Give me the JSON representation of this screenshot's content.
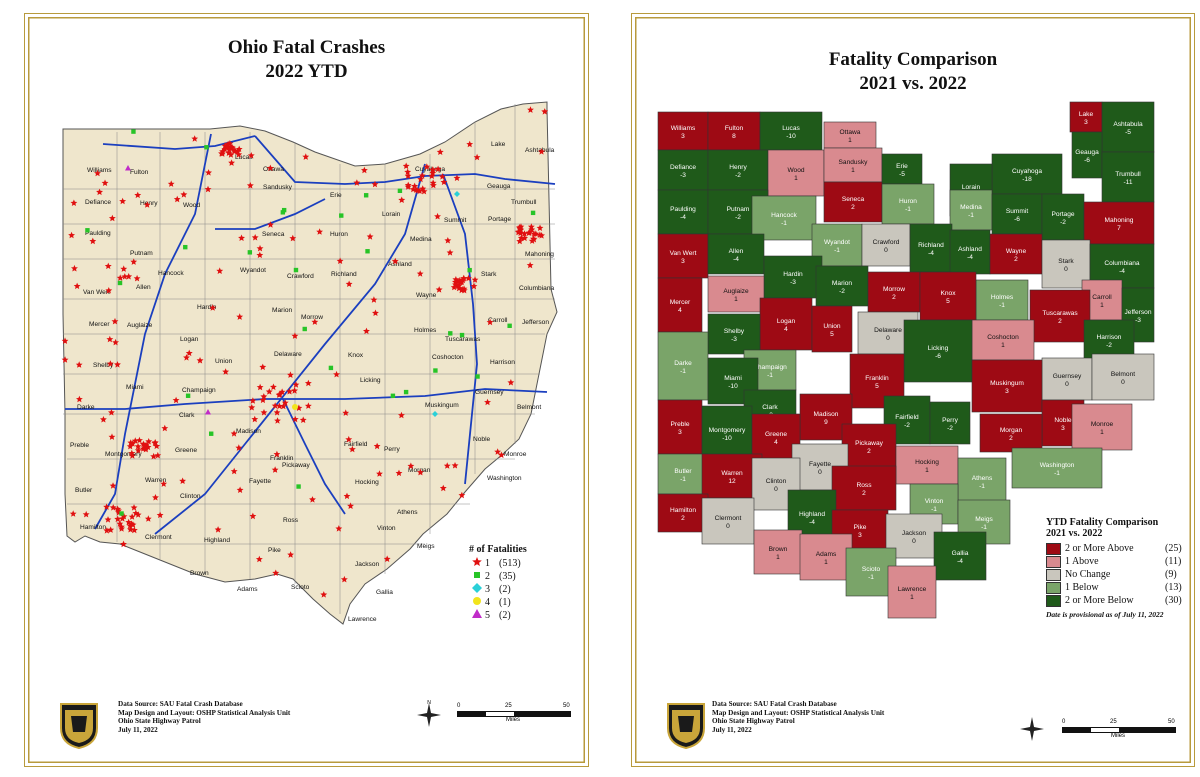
{
  "left_map": {
    "title_line1": "Ohio Fatal Crashes",
    "title_line2": "2022 YTD",
    "legend": {
      "title": "# of Fatalities",
      "items": [
        {
          "value": "1",
          "count": "(513)",
          "symbol": "star",
          "color": "#e01010"
        },
        {
          "value": "2",
          "count": "(35)",
          "symbol": "square",
          "color": "#27c427"
        },
        {
          "value": "3",
          "count": "(2)",
          "symbol": "diamond",
          "color": "#2ad0d8"
        },
        {
          "value": "4",
          "count": "(1)",
          "symbol": "circle",
          "color": "#f2e41c"
        },
        {
          "value": "5",
          "count": "(2)",
          "symbol": "triangle",
          "color": "#c02cc8"
        }
      ]
    },
    "counties": [
      "Williams",
      "Fulton",
      "Lucas",
      "Ottawa",
      "Lake",
      "Ashtabula",
      "Defiance",
      "Henry",
      "Wood",
      "Sandusky",
      "Erie",
      "Cuyahoga",
      "Geauga",
      "Trumbull",
      "Paulding",
      "Putnam",
      "Seneca",
      "Huron",
      "Lorain",
      "Summit",
      "Portage",
      "Mahoning",
      "Hancock",
      "Wyandot",
      "Crawford",
      "Richland",
      "Ashland",
      "Medina",
      "Van Wert",
      "Allen",
      "Hardin",
      "Marion",
      "Wayne",
      "Stark",
      "Columbiana",
      "Mercer",
      "Auglaize",
      "Morrow",
      "Holmes",
      "Carroll",
      "Jefferson",
      "Logan",
      "Union",
      "Delaware",
      "Knox",
      "Tuscarawas",
      "Shelby",
      "Coshocton",
      "Harrison",
      "Darke",
      "Miami",
      "Champaign",
      "Licking",
      "Muskingum",
      "Guernsey",
      "Belmont",
      "Clark",
      "Franklin",
      "Madison",
      "Preble",
      "Montgomery",
      "Greene",
      "Fairfield",
      "Perry",
      "Noble",
      "Monroe",
      "Morgan",
      "Butler",
      "Warren",
      "Fayette",
      "Pickaway",
      "Hocking",
      "Washington",
      "Clinton",
      "Ross",
      "Athens",
      "Hamilton",
      "Clermont",
      "Highland",
      "Vinton",
      "Meigs",
      "Pike",
      "Jackson",
      "Brown",
      "Adams",
      "Scioto",
      "Gallia",
      "Lawrence"
    ],
    "credits": {
      "line1": "Data Source: SAU Fatal Crash Database",
      "line2": "Map Design and Layout:  OSHP Statistical Analysis Unit",
      "line3": "Ohio State Highway Patrol",
      "line4": "July 11, 2022"
    },
    "scale": {
      "t0": "0",
      "t1": "25",
      "t2": "50",
      "unit": "Miles"
    }
  },
  "right_map": {
    "title_line1": "Fatality Comparison",
    "title_line2": "2021 vs. 2022",
    "legend": {
      "title_line1": "YTD Fatality Comparison",
      "title_line2": "2021 vs. 2022",
      "items": [
        {
          "label": "2 or More Above",
          "count": "(25)",
          "color": "#9e0a14"
        },
        {
          "label": "1 Above",
          "count": "(11)",
          "color": "#d98a8f"
        },
        {
          "label": "No Change",
          "count": "(9)",
          "color": "#c9c6bd"
        },
        {
          "label": "1 Below",
          "count": "(13)",
          "color": "#7aa469"
        },
        {
          "label": "2 or More Below",
          "count": "(30)",
          "color": "#1f5a1a"
        }
      ],
      "note": "Date is provisional as of July 11, 2022"
    },
    "counties": [
      {
        "name": "Williams",
        "value": "3"
      },
      {
        "name": "Fulton",
        "value": "8"
      },
      {
        "name": "Lucas",
        "value": "-10"
      },
      {
        "name": "Ottawa",
        "value": "1"
      },
      {
        "name": "Lake",
        "value": "3"
      },
      {
        "name": "Ashtabula",
        "value": "-5"
      },
      {
        "name": "Defiance",
        "value": "-3"
      },
      {
        "name": "Henry",
        "value": "-2"
      },
      {
        "name": "Wood",
        "value": "1"
      },
      {
        "name": "Sandusky",
        "value": "1"
      },
      {
        "name": "Erie",
        "value": "-5"
      },
      {
        "name": "Cuyahoga",
        "value": "-18"
      },
      {
        "name": "Geauga",
        "value": "-6"
      },
      {
        "name": "Trumbull",
        "value": "-11"
      },
      {
        "name": "Lorain",
        "value": "-2"
      },
      {
        "name": "Paulding",
        "value": "-4"
      },
      {
        "name": "Putnam",
        "value": "-2"
      },
      {
        "name": "Seneca",
        "value": "2"
      },
      {
        "name": "Huron",
        "value": "-1"
      },
      {
        "name": "Medina",
        "value": "-1"
      },
      {
        "name": "Summit",
        "value": "-6"
      },
      {
        "name": "Portage",
        "value": "-2"
      },
      {
        "name": "Mahoning",
        "value": "7"
      },
      {
        "name": "Hancock",
        "value": "-1"
      },
      {
        "name": "Van Wert",
        "value": "3"
      },
      {
        "name": "Wyandot",
        "value": "-1"
      },
      {
        "name": "Crawford",
        "value": "0"
      },
      {
        "name": "Richland",
        "value": "-4"
      },
      {
        "name": "Ashland",
        "value": "-4"
      },
      {
        "name": "Wayne",
        "value": "2"
      },
      {
        "name": "Stark",
        "value": "0"
      },
      {
        "name": "Allen",
        "value": "-4"
      },
      {
        "name": "Hardin",
        "value": "-3"
      },
      {
        "name": "Marion",
        "value": "-2"
      },
      {
        "name": "Columbiana",
        "value": "-4"
      },
      {
        "name": "Mercer",
        "value": "4"
      },
      {
        "name": "Auglaize",
        "value": "1"
      },
      {
        "name": "Holmes",
        "value": "-1"
      },
      {
        "name": "Carroll",
        "value": "1"
      },
      {
        "name": "Morrow",
        "value": "2"
      },
      {
        "name": "Knox",
        "value": "5"
      },
      {
        "name": "Jefferson",
        "value": "-3"
      },
      {
        "name": "Tuscarawas",
        "value": "2"
      },
      {
        "name": "Logan",
        "value": "4"
      },
      {
        "name": "Union",
        "value": "5"
      },
      {
        "name": "Shelby",
        "value": "-3"
      },
      {
        "name": "Delaware",
        "value": "0"
      },
      {
        "name": "Coshocton",
        "value": "1"
      },
      {
        "name": "Harrison",
        "value": "-2"
      },
      {
        "name": "Darke",
        "value": "-1"
      },
      {
        "name": "Champaign",
        "value": "-1"
      },
      {
        "name": "Licking",
        "value": "-6"
      },
      {
        "name": "Miami",
        "value": "-10"
      },
      {
        "name": "Guernsey",
        "value": "0"
      },
      {
        "name": "Belmont",
        "value": "0"
      },
      {
        "name": "Franklin",
        "value": "5"
      },
      {
        "name": "Muskingum",
        "value": "3"
      },
      {
        "name": "Clark",
        "value": "-3"
      },
      {
        "name": "Madison",
        "value": "9"
      },
      {
        "name": "Preble",
        "value": "3"
      },
      {
        "name": "Montgomery",
        "value": "-10"
      },
      {
        "name": "Greene",
        "value": "4"
      },
      {
        "name": "Fairfield",
        "value": "-2"
      },
      {
        "name": "Perry",
        "value": "-2"
      },
      {
        "name": "Noble",
        "value": "3"
      },
      {
        "name": "Monroe",
        "value": "1"
      },
      {
        "name": "Pickaway",
        "value": "2"
      },
      {
        "name": "Morgan",
        "value": "2"
      },
      {
        "name": "Washington",
        "value": "-1"
      },
      {
        "name": "Fayette",
        "value": "0"
      },
      {
        "name": "Butler",
        "value": "-1"
      },
      {
        "name": "Warren",
        "value": "12"
      },
      {
        "name": "Clinton",
        "value": "0"
      },
      {
        "name": "Hocking",
        "value": "1"
      },
      {
        "name": "Ross",
        "value": "2"
      },
      {
        "name": "Athens",
        "value": "-1"
      },
      {
        "name": "Vinton",
        "value": "-1"
      },
      {
        "name": "Hamilton",
        "value": "2"
      },
      {
        "name": "Highland",
        "value": "-4"
      },
      {
        "name": "Clermont",
        "value": "0"
      },
      {
        "name": "Meigs",
        "value": "-1"
      },
      {
        "name": "Pike",
        "value": "3"
      },
      {
        "name": "Jackson",
        "value": "0"
      },
      {
        "name": "Brown",
        "value": "1"
      },
      {
        "name": "Adams",
        "value": "1"
      },
      {
        "name": "Scioto",
        "value": "-1"
      },
      {
        "name": "Gallia",
        "value": "-4"
      },
      {
        "name": "Lawrence",
        "value": "1"
      }
    ],
    "credits": {
      "line1": "Data Source: SAU Fatal Crash Database",
      "line2": "Map Design and Layout:  OSHP Statistical Analysis Unit",
      "line3": "Ohio State Highway Patrol",
      "line4": "July 11, 2022"
    },
    "scale": {
      "t0": "0",
      "t1": "25",
      "t2": "50",
      "unit": "Miles"
    }
  },
  "badge": {
    "line1": "STATE",
    "line2": "HIGHWAY",
    "line3": "PATROL",
    "line4": "OHIO"
  },
  "compass": {
    "n": "N",
    "s": "S",
    "e": "E",
    "w": "W"
  }
}
